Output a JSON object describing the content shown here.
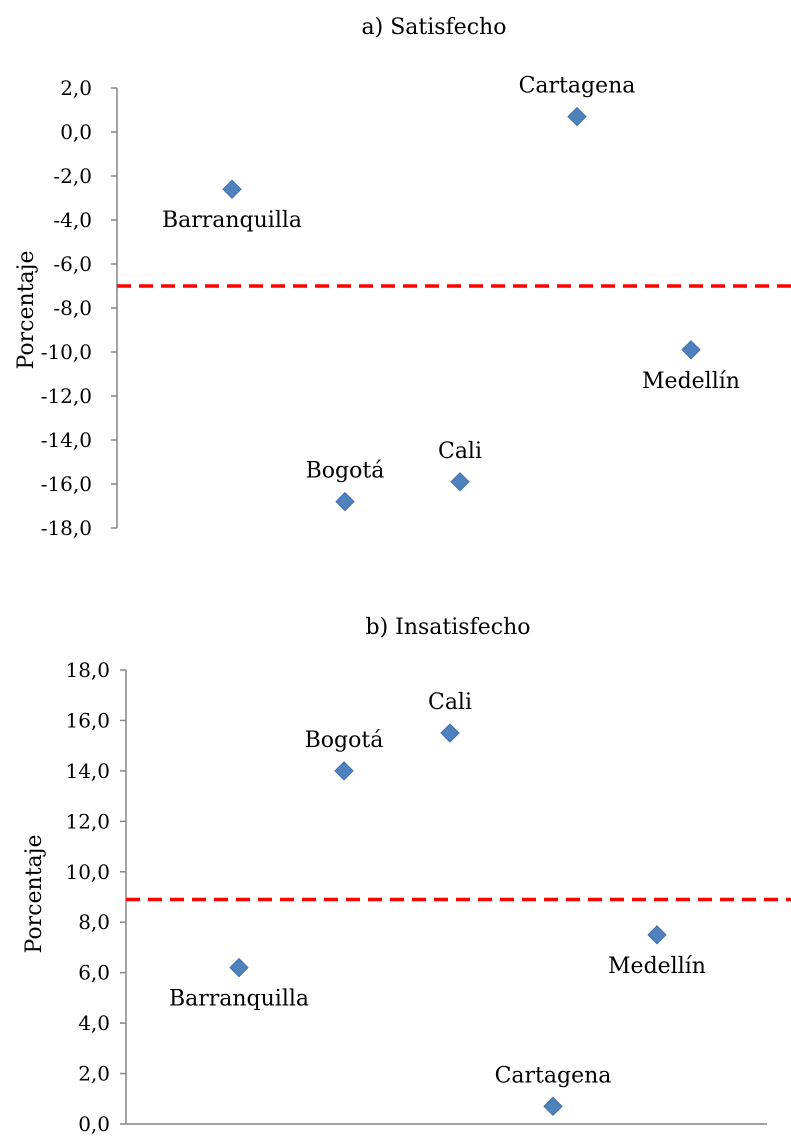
{
  "colors": {
    "marker": "#4f81bd",
    "reference_line": "#ff0000",
    "axis": "#868686"
  },
  "chart_data": [
    {
      "type": "scatter",
      "title": "a) Satisfecho",
      "xlabel": "",
      "ylabel": "Porcentaje",
      "ylim": [
        -18,
        2
      ],
      "yticks": [
        2,
        0,
        -2,
        -4,
        -6,
        -8,
        -10,
        -12,
        -14,
        -16,
        -18
      ],
      "ytick_labels": [
        "2,0",
        "0,0",
        "-2,0",
        "-4,0",
        "-6,0",
        "-8,0",
        "-10,0",
        "-12,0",
        "-14,0",
        "-16,0",
        "-18,0"
      ],
      "marker": "diamond",
      "grid": false,
      "reference_line": {
        "y": -7.0,
        "style": "dashed"
      },
      "points": [
        {
          "label": "Barranquilla",
          "x": 1,
          "y": -2.6,
          "label_position": "below"
        },
        {
          "label": "Bogotá",
          "x": 2,
          "y": -16.8,
          "label_position": "above"
        },
        {
          "label": "Cali",
          "x": 3,
          "y": -15.9,
          "label_position": "above"
        },
        {
          "label": "Cartagena",
          "x": 4,
          "y": 0.7,
          "label_position": "above"
        },
        {
          "label": "Medellín",
          "x": 5,
          "y": -9.9,
          "label_position": "below"
        }
      ]
    },
    {
      "type": "scatter",
      "title": "b) Insatisfecho",
      "xlabel": "",
      "ylabel": "Porcentaje",
      "ylim": [
        0,
        18
      ],
      "yticks": [
        18,
        16,
        14,
        12,
        10,
        8,
        6,
        4,
        2,
        0
      ],
      "ytick_labels": [
        "18,0",
        "16,0",
        "14,0",
        "12,0",
        "10,0",
        "8,0",
        "6,0",
        "4,0",
        "2,0",
        "0,0"
      ],
      "marker": "diamond",
      "grid": false,
      "reference_line": {
        "y": 8.9,
        "style": "dashed"
      },
      "points": [
        {
          "label": "Barranquilla",
          "x": 1,
          "y": 6.2,
          "label_position": "below"
        },
        {
          "label": "Bogotá",
          "x": 2,
          "y": 14.0,
          "label_position": "above"
        },
        {
          "label": "Cali",
          "x": 3,
          "y": 15.5,
          "label_position": "above"
        },
        {
          "label": "Cartagena",
          "x": 4,
          "y": 0.7,
          "label_position": "above"
        },
        {
          "label": "Medellín",
          "x": 5,
          "y": 7.5,
          "label_position": "below"
        }
      ]
    }
  ]
}
